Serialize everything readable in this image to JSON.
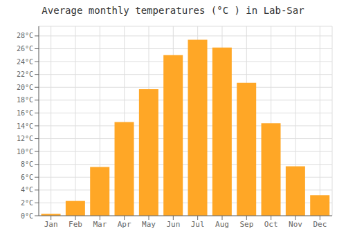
{
  "chart_data": {
    "type": "bar",
    "title": "Average monthly temperatures (°C ) in Lab-Sar",
    "categories": [
      "Jan",
      "Feb",
      "Mar",
      "Apr",
      "May",
      "Jun",
      "Jul",
      "Aug",
      "Sep",
      "Oct",
      "Nov",
      "Dec"
    ],
    "values": [
      0.3,
      2.3,
      7.6,
      14.6,
      19.7,
      25.0,
      27.4,
      26.2,
      20.7,
      14.4,
      7.7,
      3.2
    ],
    "color": "#FFA726",
    "ylim": [
      0,
      29.5
    ],
    "yticks": [
      {
        "value": 0,
        "label": "0°C"
      },
      {
        "value": 2,
        "label": "2°C"
      },
      {
        "value": 4,
        "label": "4°C"
      },
      {
        "value": 6,
        "label": "6°C"
      },
      {
        "value": 8,
        "label": "8°C"
      },
      {
        "value": 10,
        "label": "10°C"
      },
      {
        "value": 12,
        "label": "12°C"
      },
      {
        "value": 14,
        "label": "14°C"
      },
      {
        "value": 16,
        "label": "16°C"
      },
      {
        "value": 18,
        "label": "18°C"
      },
      {
        "value": 20,
        "label": "20°C"
      },
      {
        "value": 22,
        "label": "22°C"
      },
      {
        "value": 24,
        "label": "24°C"
      },
      {
        "value": 26,
        "label": "26°C"
      },
      {
        "value": 28,
        "label": "28°C"
      }
    ],
    "grid": true
  }
}
